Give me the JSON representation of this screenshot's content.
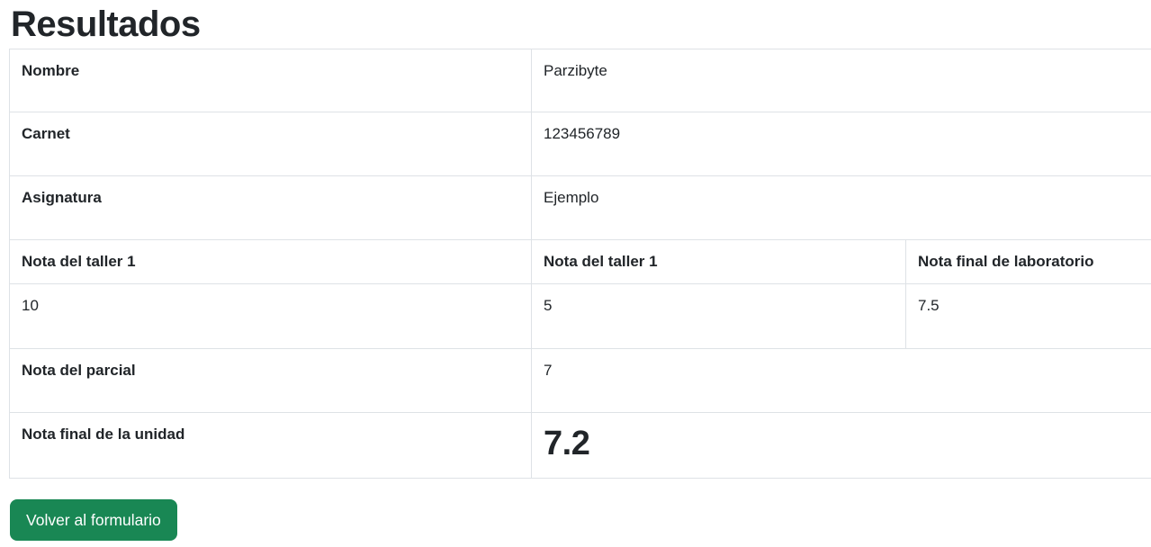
{
  "page": {
    "title": "Resultados"
  },
  "table": {
    "info_rows": [
      {
        "label": "Nombre",
        "value": "Parzibyte"
      },
      {
        "label": "Carnet",
        "value": "123456789"
      },
      {
        "label": "Asignatura",
        "value": "Ejemplo"
      }
    ],
    "grade_columns": [
      {
        "header": "Nota del taller 1",
        "value": "10"
      },
      {
        "header": "Nota del taller 1",
        "value": "5"
      },
      {
        "header": "Nota final de laboratorio",
        "value": "7.5"
      }
    ],
    "parcial_row": {
      "label": "Nota del parcial",
      "value": "7"
    },
    "final_row": {
      "label": "Nota final de la unidad",
      "value": "7.2"
    }
  },
  "actions": {
    "back_button": "Volver al formulario"
  },
  "colors": {
    "button_green": "#198754",
    "table_border": "#dee2e6",
    "text_dark": "#212529"
  }
}
